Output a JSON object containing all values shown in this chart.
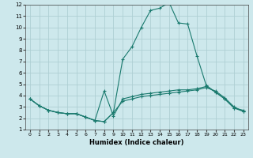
{
  "xlabel": "Humidex (Indice chaleur)",
  "bg_color": "#cde8ec",
  "grid_color": "#aecfd4",
  "line_color": "#1a7a6e",
  "xlim": [
    -0.5,
    23.5
  ],
  "ylim": [
    1,
    12
  ],
  "xticks": [
    0,
    1,
    2,
    3,
    4,
    5,
    6,
    7,
    8,
    9,
    10,
    11,
    12,
    13,
    14,
    15,
    16,
    17,
    18,
    19,
    20,
    21,
    22,
    23
  ],
  "yticks": [
    1,
    2,
    3,
    4,
    5,
    6,
    7,
    8,
    9,
    10,
    11,
    12
  ],
  "series1_x": [
    0,
    1,
    2,
    3,
    4,
    5,
    6,
    7,
    8,
    9,
    10,
    11,
    12,
    13,
    14,
    15,
    16,
    17,
    18,
    19,
    20,
    21,
    22,
    23
  ],
  "series1_y": [
    3.7,
    3.1,
    2.7,
    2.5,
    2.4,
    2.4,
    2.1,
    1.8,
    1.7,
    2.5,
    3.5,
    3.7,
    3.9,
    4.0,
    4.1,
    4.2,
    4.3,
    4.4,
    4.5,
    4.7,
    4.4,
    3.8,
    3.0,
    2.6
  ],
  "series2_x": [
    0,
    1,
    2,
    3,
    4,
    5,
    6,
    7,
    8,
    9,
    10,
    11,
    12,
    13,
    14,
    15,
    16,
    17,
    18,
    19,
    20,
    21,
    22,
    23
  ],
  "series2_y": [
    3.7,
    3.1,
    2.7,
    2.5,
    2.4,
    2.4,
    2.1,
    1.8,
    4.4,
    2.2,
    3.7,
    3.9,
    4.1,
    4.2,
    4.3,
    4.4,
    4.5,
    4.5,
    4.6,
    4.8,
    4.3,
    3.7,
    2.9,
    2.7
  ],
  "series3_x": [
    0,
    1,
    2,
    3,
    4,
    5,
    6,
    7,
    8,
    9,
    10,
    11,
    12,
    13,
    14,
    15,
    16,
    17,
    18,
    19,
    20,
    21,
    22,
    23
  ],
  "series3_y": [
    3.7,
    3.1,
    2.7,
    2.5,
    2.4,
    2.4,
    2.1,
    1.8,
    1.7,
    2.5,
    7.2,
    8.3,
    10.0,
    11.5,
    11.7,
    12.2,
    10.4,
    10.3,
    7.5,
    4.9,
    4.3,
    3.7,
    2.9,
    2.6
  ]
}
